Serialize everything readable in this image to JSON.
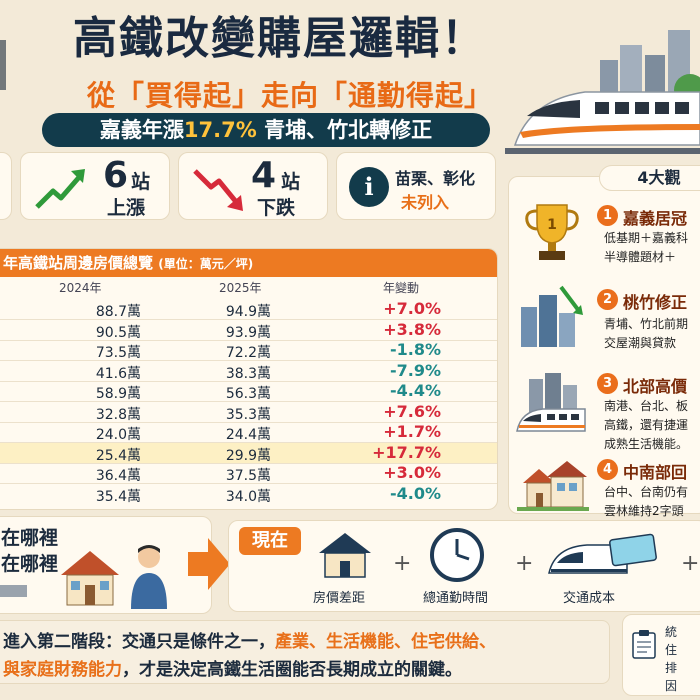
{
  "header": {
    "title": "高鐵改變購屋邏輯！",
    "subtitle": "從「買得起」走向「通勤得起」",
    "banner_prefix": "嘉義年漲",
    "banner_highlight": "17.7%",
    "banner_suffix": "青埔、竹北轉修正"
  },
  "stats": [
    {
      "number": "6",
      "unit": "站",
      "label": "上漲"
    },
    {
      "number": "4",
      "unit": "站",
      "label": "下跌"
    },
    {
      "line1": "苗栗、彰化",
      "line2": "未列入"
    }
  ],
  "table": {
    "title": "年高鐵站周邊房價總覽",
    "unit": "(單位：萬元／坪)",
    "columns": [
      "2024年",
      "2025年",
      "年變動"
    ],
    "rows": [
      {
        "y2024": "88.7萬",
        "y2025": "94.9萬",
        "change": "+7.0%",
        "dir": "up"
      },
      {
        "y2024": "90.5萬",
        "y2025": "93.9萬",
        "change": "+3.8%",
        "dir": "up"
      },
      {
        "y2024": "73.5萬",
        "y2025": "72.2萬",
        "change": "-1.8%",
        "dir": "down"
      },
      {
        "y2024": "41.6萬",
        "y2025": "38.3萬",
        "change": "-7.9%",
        "dir": "down"
      },
      {
        "y2024": "58.9萬",
        "y2025": "56.3萬",
        "change": "-4.4%",
        "dir": "down"
      },
      {
        "y2024": "32.8萬",
        "y2025": "35.3萬",
        "change": "+7.6%",
        "dir": "up"
      },
      {
        "y2024": "24.0萬",
        "y2025": "24.4萬",
        "change": "+1.7%",
        "dir": "up"
      },
      {
        "y2024": "25.4萬",
        "y2025": "29.9萬",
        "change": "+17.7%",
        "dir": "up",
        "highlight": true
      },
      {
        "y2024": "36.4萬",
        "y2025": "37.5萬",
        "change": "+3.0%",
        "dir": "up"
      },
      {
        "y2024": "35.4萬",
        "y2025": "34.0萬",
        "change": "-4.0%",
        "dir": "down"
      }
    ]
  },
  "observations": {
    "header": "4大觀",
    "items": [
      {
        "num": "1",
        "title": "嘉義居冠",
        "lines": [
          "低基期＋嘉義科",
          "半導體題材＋"
        ]
      },
      {
        "num": "2",
        "title": "桃竹修正",
        "lines": [
          "青埔、竹北前期",
          "交屋潮與貸款"
        ]
      },
      {
        "num": "3",
        "title": "北部高價",
        "lines": [
          "南港、台北、板",
          "高鐵，還有捷運",
          "成熟生活機能。"
        ]
      },
      {
        "num": "4",
        "title": "中南部回",
        "lines": [
          "台中、台南仍有",
          "雲林維持2字頭"
        ]
      }
    ]
  },
  "compare": {
    "past_line1": "在哪裡",
    "past_line2": "在哪裡",
    "now_label": "現在",
    "factors": [
      "房價差距",
      "總通勤時間",
      "交通成本"
    ],
    "plus": "+"
  },
  "footer": {
    "line1_a": "進入第二階段：交通只是條件之一，",
    "line1_b": "產業、生活機能、住宅供給、",
    "line2_a": "與家庭財務能力",
    "line2_b": "，才是決定高鐵生活圈能否長期成立的關鍵。"
  },
  "note": {
    "lines": [
      "統",
      "住",
      "排",
      "因"
    ]
  },
  "colors": {
    "accent": "#ed7a22",
    "navy": "#123b4b",
    "up": "#d62a3a",
    "down": "#1f8a8a",
    "highlight": "#fdf0c4"
  }
}
